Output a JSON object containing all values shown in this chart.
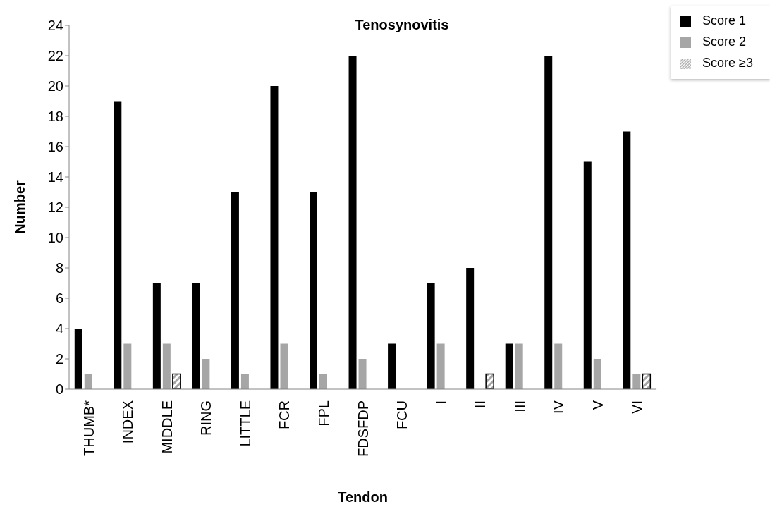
{
  "chart_data": {
    "type": "bar",
    "title": "Tenosynovitis",
    "xlabel": "Tendon",
    "ylabel": "Number",
    "categories": [
      "THUMB*",
      "INDEX",
      "MIDDLE",
      "RING",
      "LITTLE",
      "FCR",
      "FPL",
      "FDSFDP",
      "FCU",
      "I",
      "II",
      "III",
      "IV",
      "V",
      "VI"
    ],
    "series": [
      {
        "name": "Score 1",
        "color": "#000000",
        "values": [
          4,
          19,
          7,
          7,
          13,
          20,
          13,
          22,
          3,
          7,
          8,
          3,
          22,
          15,
          17
        ]
      },
      {
        "name": "Score 2",
        "color": "#a6a6a6",
        "values": [
          1,
          3,
          3,
          2,
          1,
          3,
          1,
          2,
          null,
          3,
          null,
          3,
          3,
          2,
          1
        ]
      },
      {
        "name": "Score ≥3",
        "color": "#000000",
        "values": [
          null,
          null,
          1,
          null,
          null,
          null,
          null,
          null,
          null,
          null,
          1,
          null,
          null,
          null,
          1
        ]
      }
    ],
    "ylim": [
      0,
      24
    ],
    "yticks": [
      0,
      2,
      4,
      6,
      8,
      10,
      12,
      14,
      16,
      18,
      20,
      22,
      24
    ],
    "legend": "top right"
  }
}
